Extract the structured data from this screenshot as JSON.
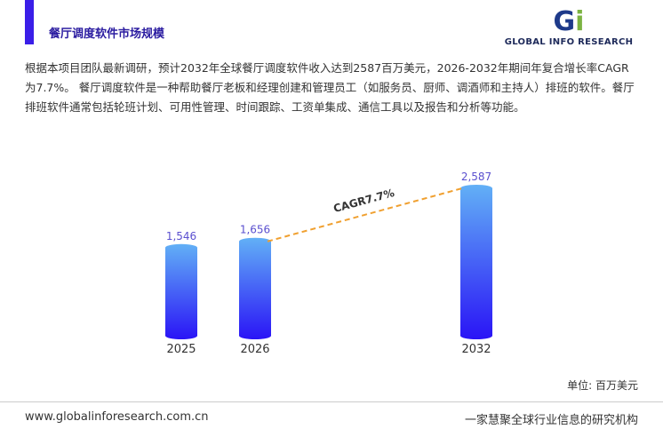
{
  "header": {
    "title": "餐厅调度软件市场规模",
    "logo_text": "GLOBAL INFO RESEARCH"
  },
  "description": "根据本项目团队最新调研，预计2032年全球餐厅调度软件收入达到2587百万美元，2026-2032年期间年复合增长率CAGR为7.7%。 餐厅调度软件是一种帮助餐厅老板和经理创建和管理员工（如服务员、厨师、调酒师和主持人）排班的软件。餐厅排班软件通常包括轮班计划、可用性管理、时间跟踪、工资单集成、通信工具以及报告和分析等功能。",
  "chart_data": {
    "type": "bar",
    "categories": [
      "2025",
      "2026",
      "2032"
    ],
    "values": [
      1546,
      1656,
      2587
    ],
    "value_labels": [
      "1,546",
      "1,656",
      "2,587"
    ],
    "annotation": "CAGR7.7%",
    "unit": "单位: 百万美元",
    "color_top": "#62b0f6",
    "color_bottom": "#2a14f6"
  },
  "footer": {
    "website": "www.globalinforesearch.com.cn",
    "tagline": "一家慧聚全球行业信息的研究机构"
  }
}
